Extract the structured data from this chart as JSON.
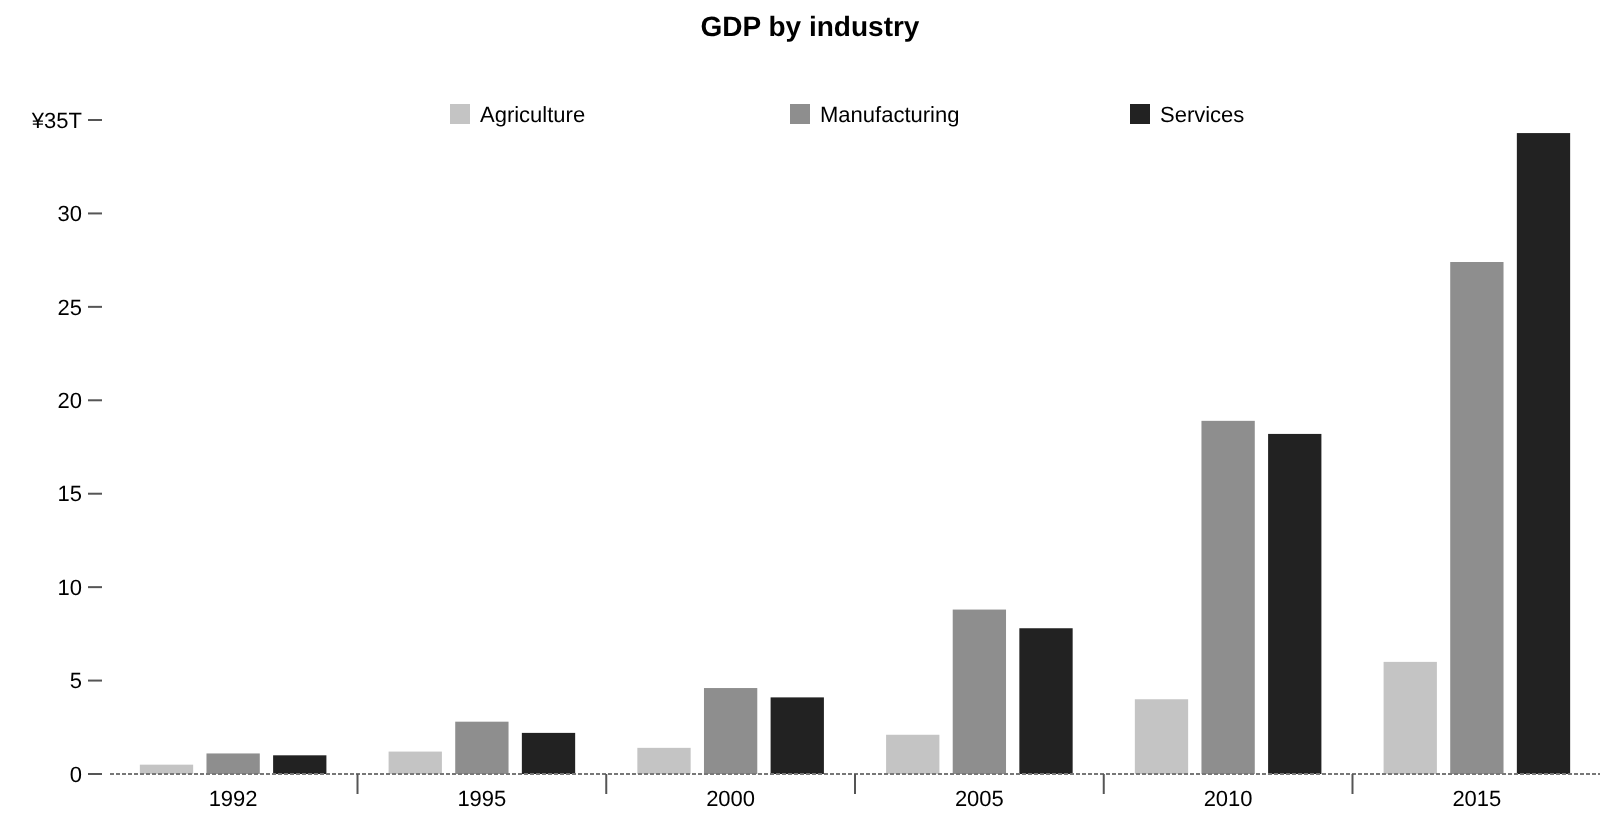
{
  "chart_data": {
    "type": "bar",
    "title": "GDP by industry",
    "categories": [
      "1992",
      "1995",
      "2000",
      "2005",
      "2010",
      "2015"
    ],
    "series": [
      {
        "name": "Agriculture",
        "color": "#c4c4c4",
        "values": [
          0.5,
          1.2,
          1.4,
          2.1,
          4.0,
          6.0
        ]
      },
      {
        "name": "Manufacturing",
        "color": "#8e8e8e",
        "values": [
          1.1,
          2.8,
          4.6,
          8.8,
          18.9,
          27.4
        ]
      },
      {
        "name": "Services",
        "color": "#222222",
        "values": [
          1.0,
          2.2,
          4.1,
          7.8,
          18.2,
          34.3
        ]
      }
    ],
    "ylim": [
      0,
      35
    ],
    "yticks": [
      0,
      5,
      10,
      15,
      20,
      25,
      30,
      {
        "value": 35,
        "label": "¥35T"
      }
    ],
    "grid": false,
    "legend": "top"
  }
}
